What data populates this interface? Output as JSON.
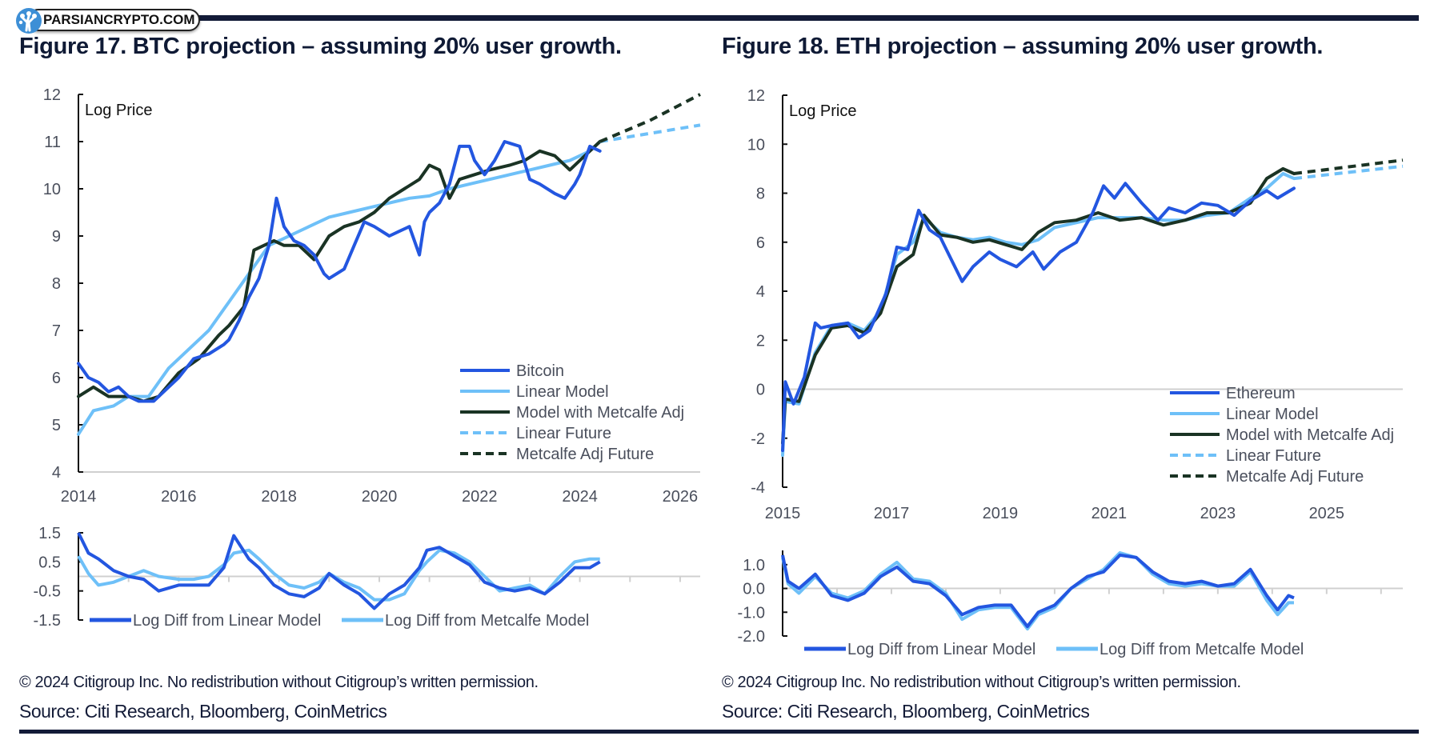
{
  "watermark": {
    "text": "PARSIANCRYPTO.COM",
    "icon": "tree-logo-icon"
  },
  "colors": {
    "asset": "#2356e0",
    "linear": "#6ec0f8",
    "metcalfe": "#1a3324",
    "rule": "#131b38",
    "zero": "#d0d0d0"
  },
  "chart_data": [
    {
      "type": "line",
      "title": "Figure 17. BTC projection – assuming 20% user growth.",
      "ylabel": "Log Price",
      "xlim": [
        2014,
        2026.4
      ],
      "ylim": [
        4,
        12
      ],
      "x_ticks": [
        "2014",
        "2016",
        "2018",
        "2020",
        "2022",
        "2024",
        "2026"
      ],
      "y_ticks": [
        "12",
        "11",
        "10",
        "9",
        "8",
        "7",
        "6",
        "5",
        "4"
      ],
      "legend_position": "bottom-right",
      "legend": [
        "Bitcoin",
        "Linear Model",
        "Model with Metcalfe Adj",
        "Linear Future",
        "Metcalfe Adj Future"
      ],
      "series": [
        {
          "name": "Bitcoin",
          "style": "solid",
          "color_key": "asset",
          "x": [
            2014.0,
            2014.2,
            2014.4,
            2014.6,
            2014.8,
            2015.0,
            2015.2,
            2015.5,
            2015.8,
            2016.0,
            2016.3,
            2016.6,
            2016.9,
            2017.0,
            2017.2,
            2017.4,
            2017.6,
            2017.8,
            2017.95,
            2018.1,
            2018.3,
            2018.5,
            2018.7,
            2018.9,
            2019.0,
            2019.3,
            2019.5,
            2019.7,
            2019.9,
            2020.2,
            2020.4,
            2020.6,
            2020.8,
            2020.9,
            2021.0,
            2021.2,
            2021.4,
            2021.6,
            2021.8,
            2021.9,
            2022.1,
            2022.3,
            2022.5,
            2022.8,
            2023.0,
            2023.2,
            2023.5,
            2023.7,
            2023.9,
            2024.0,
            2024.2,
            2024.4
          ],
          "y": [
            6.3,
            6.0,
            5.9,
            5.7,
            5.8,
            5.6,
            5.5,
            5.5,
            5.8,
            6.0,
            6.4,
            6.5,
            6.7,
            6.8,
            7.2,
            7.7,
            8.1,
            8.8,
            9.8,
            9.2,
            8.9,
            8.8,
            8.6,
            8.2,
            8.1,
            8.3,
            8.8,
            9.3,
            9.2,
            9.0,
            9.1,
            9.2,
            8.6,
            9.3,
            9.5,
            9.7,
            10.1,
            10.9,
            10.9,
            10.6,
            10.3,
            10.6,
            11.0,
            10.9,
            10.2,
            10.1,
            9.9,
            9.8,
            10.1,
            10.3,
            10.9,
            10.8
          ]
        },
        {
          "name": "Linear Model",
          "style": "solid",
          "color_key": "linear",
          "x": [
            2014.0,
            2014.3,
            2014.7,
            2015.0,
            2015.4,
            2015.8,
            2016.2,
            2016.6,
            2017.0,
            2017.4,
            2017.8,
            2018.2,
            2018.6,
            2019.0,
            2019.4,
            2019.8,
            2020.2,
            2020.6,
            2021.0,
            2021.4,
            2021.8,
            2022.2,
            2022.6,
            2023.0,
            2023.4,
            2023.8,
            2024.2,
            2024.4
          ],
          "y": [
            4.8,
            5.3,
            5.4,
            5.6,
            5.6,
            6.2,
            6.6,
            7.0,
            7.6,
            8.2,
            8.8,
            9.0,
            9.2,
            9.4,
            9.5,
            9.6,
            9.7,
            9.8,
            9.85,
            10.0,
            10.1,
            10.2,
            10.3,
            10.4,
            10.5,
            10.6,
            10.8,
            11.0
          ]
        },
        {
          "name": "Model with Metcalfe Adj",
          "style": "solid",
          "color_key": "metcalfe",
          "x": [
            2014.0,
            2014.3,
            2014.6,
            2015.0,
            2015.3,
            2015.6,
            2016.0,
            2016.4,
            2016.8,
            2017.0,
            2017.3,
            2017.5,
            2017.7,
            2017.9,
            2018.1,
            2018.4,
            2018.7,
            2019.0,
            2019.3,
            2019.6,
            2019.9,
            2020.2,
            2020.5,
            2020.8,
            2021.0,
            2021.2,
            2021.4,
            2021.6,
            2021.9,
            2022.2,
            2022.6,
            2022.9,
            2023.2,
            2023.5,
            2023.8,
            2024.0,
            2024.2,
            2024.4
          ],
          "y": [
            5.6,
            5.8,
            5.6,
            5.6,
            5.5,
            5.6,
            6.1,
            6.4,
            6.9,
            7.1,
            7.5,
            8.7,
            8.8,
            8.9,
            8.8,
            8.8,
            8.5,
            9.0,
            9.2,
            9.3,
            9.5,
            9.8,
            10.0,
            10.2,
            10.5,
            10.4,
            9.8,
            10.2,
            10.3,
            10.4,
            10.5,
            10.6,
            10.8,
            10.7,
            10.4,
            10.6,
            10.8,
            11.0
          ]
        },
        {
          "name": "Linear Future",
          "style": "dashed",
          "color_key": "linear",
          "x": [
            2024.4,
            2026.4
          ],
          "y": [
            11.0,
            11.35
          ]
        },
        {
          "name": "Metcalfe Adj Future",
          "style": "dashed",
          "color_key": "metcalfe",
          "x": [
            2024.4,
            2025.4,
            2026.4
          ],
          "y": [
            11.0,
            11.45,
            12.0
          ]
        }
      ],
      "diff_panel": {
        "ylim": [
          -1.5,
          1.5
        ],
        "y_ticks": [
          "1.5",
          "0.5",
          "-0.5",
          "-1.5"
        ],
        "legend": [
          "Log Diff from Linear Model",
          "Log Diff from Metcalfe Model"
        ],
        "series": [
          {
            "name": "Log Diff from Linear Model",
            "color_key": "asset",
            "x": [
              2014.0,
              2014.2,
              2014.4,
              2014.7,
              2015.0,
              2015.3,
              2015.6,
              2016.0,
              2016.3,
              2016.6,
              2016.9,
              2017.1,
              2017.4,
              2017.6,
              2017.9,
              2018.2,
              2018.5,
              2018.8,
              2019.0,
              2019.3,
              2019.6,
              2019.9,
              2020.2,
              2020.5,
              2020.8,
              2020.95,
              2021.2,
              2021.5,
              2021.8,
              2022.1,
              2022.4,
              2022.7,
              2023.0,
              2023.3,
              2023.6,
              2023.9,
              2024.2,
              2024.4
            ],
            "y": [
              1.5,
              0.8,
              0.6,
              0.2,
              0.0,
              -0.1,
              -0.5,
              -0.3,
              -0.3,
              -0.3,
              0.3,
              1.4,
              0.6,
              0.3,
              -0.3,
              -0.6,
              -0.7,
              -0.4,
              0.1,
              -0.3,
              -0.6,
              -1.1,
              -0.6,
              -0.3,
              0.3,
              0.9,
              1.0,
              0.7,
              0.4,
              -0.2,
              -0.4,
              -0.5,
              -0.4,
              -0.6,
              -0.2,
              0.3,
              0.3,
              0.5
            ]
          },
          {
            "name": "Log Diff from Metcalfe Model",
            "color_key": "linear",
            "x": [
              2014.0,
              2014.2,
              2014.4,
              2014.7,
              2015.0,
              2015.3,
              2015.6,
              2016.0,
              2016.3,
              2016.6,
              2016.9,
              2017.1,
              2017.4,
              2017.6,
              2017.9,
              2018.2,
              2018.5,
              2018.8,
              2019.0,
              2019.3,
              2019.6,
              2019.9,
              2020.2,
              2020.5,
              2020.8,
              2020.95,
              2021.2,
              2021.5,
              2021.8,
              2022.1,
              2022.4,
              2022.7,
              2023.0,
              2023.3,
              2023.6,
              2023.9,
              2024.2,
              2024.4
            ],
            "y": [
              0.7,
              0.1,
              -0.3,
              -0.2,
              0.0,
              0.2,
              0.0,
              -0.1,
              -0.1,
              0.0,
              0.4,
              0.8,
              0.9,
              0.6,
              0.1,
              -0.3,
              -0.4,
              -0.2,
              0.1,
              -0.2,
              -0.4,
              -0.8,
              -0.8,
              -0.6,
              0.2,
              0.5,
              0.9,
              0.8,
              0.5,
              0.0,
              -0.5,
              -0.4,
              -0.3,
              -0.6,
              0.0,
              0.5,
              0.6,
              0.6
            ]
          }
        ]
      }
    },
    {
      "type": "line",
      "title": "Figure 18. ETH projection – assuming 20% user growth.",
      "ylabel": "Log Price",
      "xlim": [
        2015,
        2026.4
      ],
      "ylim": [
        -4,
        12
      ],
      "x_ticks": [
        "2015",
        "2017",
        "2019",
        "2021",
        "2023",
        "2025"
      ],
      "y_ticks": [
        "12",
        "10",
        "8",
        "6",
        "4",
        "2",
        "0",
        "-2",
        "-4"
      ],
      "legend_position": "bottom-right",
      "legend": [
        "Ethereum",
        "Linear Model",
        "Model with Metcalfe Adj",
        "Linear Future",
        "Metcalfe Adj Future"
      ],
      "series": [
        {
          "name": "Ethereum",
          "style": "solid",
          "color_key": "asset",
          "x": [
            2015.0,
            2015.05,
            2015.2,
            2015.4,
            2015.6,
            2015.7,
            2015.9,
            2016.2,
            2016.4,
            2016.6,
            2016.9,
            2017.1,
            2017.3,
            2017.5,
            2017.7,
            2017.9,
            2018.1,
            2018.3,
            2018.5,
            2018.8,
            2019.0,
            2019.3,
            2019.6,
            2019.8,
            2020.1,
            2020.4,
            2020.7,
            2020.9,
            2021.1,
            2021.3,
            2021.6,
            2021.9,
            2022.1,
            2022.4,
            2022.7,
            2023.0,
            2023.3,
            2023.6,
            2023.9,
            2024.1,
            2024.4
          ],
          "y": [
            -2.5,
            0.3,
            -0.6,
            0.5,
            2.7,
            2.5,
            2.6,
            2.7,
            2.1,
            2.4,
            3.9,
            5.8,
            5.7,
            7.3,
            6.5,
            6.2,
            5.3,
            4.4,
            5.0,
            5.6,
            5.3,
            5.0,
            5.6,
            4.9,
            5.6,
            6.0,
            7.2,
            8.3,
            7.8,
            8.4,
            7.6,
            6.9,
            7.4,
            7.2,
            7.6,
            7.5,
            7.1,
            7.7,
            8.1,
            7.8,
            8.2
          ]
        },
        {
          "name": "Linear Model",
          "style": "solid",
          "color_key": "linear",
          "x": [
            2015.0,
            2015.05,
            2015.3,
            2015.6,
            2015.9,
            2016.2,
            2016.5,
            2016.8,
            2017.1,
            2017.4,
            2017.6,
            2017.9,
            2018.2,
            2018.5,
            2018.8,
            2019.1,
            2019.4,
            2019.7,
            2020.0,
            2020.4,
            2020.8,
            2021.2,
            2021.6,
            2022.0,
            2022.4,
            2022.8,
            2023.2,
            2023.6,
            2023.9,
            2024.2,
            2024.4
          ],
          "y": [
            -2.7,
            -0.5,
            -0.6,
            1.5,
            2.6,
            2.7,
            2.4,
            3.2,
            5.5,
            6.0,
            7.0,
            6.4,
            6.2,
            6.1,
            6.2,
            6.0,
            5.9,
            6.1,
            6.6,
            6.8,
            7.0,
            7.0,
            7.0,
            6.9,
            6.9,
            7.1,
            7.2,
            7.8,
            8.2,
            8.8,
            8.6
          ]
        },
        {
          "name": "Model with Metcalfe Adj",
          "style": "solid",
          "color_key": "metcalfe",
          "x": [
            2015.0,
            2015.05,
            2015.3,
            2015.6,
            2015.9,
            2016.2,
            2016.5,
            2016.8,
            2017.1,
            2017.4,
            2017.6,
            2017.9,
            2018.2,
            2018.5,
            2018.8,
            2019.1,
            2019.4,
            2019.7,
            2020.0,
            2020.4,
            2020.8,
            2021.2,
            2021.6,
            2022.0,
            2022.4,
            2022.8,
            2023.2,
            2023.6,
            2023.9,
            2024.2,
            2024.4
          ],
          "y": [
            -2.2,
            -0.4,
            -0.5,
            1.4,
            2.5,
            2.6,
            2.3,
            3.1,
            5.0,
            5.5,
            7.1,
            6.3,
            6.2,
            6.0,
            6.1,
            5.9,
            5.7,
            6.4,
            6.8,
            6.9,
            7.2,
            6.9,
            7.0,
            6.7,
            6.9,
            7.2,
            7.2,
            7.6,
            8.6,
            9.0,
            8.8
          ]
        },
        {
          "name": "Linear Future",
          "style": "dashed",
          "color_key": "linear",
          "x": [
            2024.4,
            2026.4
          ],
          "y": [
            8.6,
            9.1
          ]
        },
        {
          "name": "Metcalfe Adj Future",
          "style": "dashed",
          "color_key": "metcalfe",
          "x": [
            2024.4,
            2026.4
          ],
          "y": [
            8.8,
            9.35
          ]
        }
      ],
      "diff_panel": {
        "ylim": [
          -2.0,
          1.6
        ],
        "y_ticks": [
          "1.0",
          "0.0",
          "-1.0",
          "-2.0"
        ],
        "legend": [
          "Log Diff from Linear Model",
          "Log Diff from Metcalfe Model"
        ],
        "series": [
          {
            "name": "Log Diff from Linear Model",
            "color_key": "asset",
            "x": [
              2015.0,
              2015.1,
              2015.3,
              2015.6,
              2015.9,
              2016.2,
              2016.5,
              2016.8,
              2017.1,
              2017.4,
              2017.7,
              2018.0,
              2018.3,
              2018.6,
              2018.9,
              2019.2,
              2019.5,
              2019.7,
              2020.0,
              2020.3,
              2020.6,
              2020.9,
              2021.2,
              2021.5,
              2021.8,
              2022.1,
              2022.4,
              2022.7,
              2023.0,
              2023.3,
              2023.6,
              2023.9,
              2024.1,
              2024.3,
              2024.4
            ],
            "y": [
              1.4,
              0.3,
              0.0,
              0.6,
              -0.3,
              -0.5,
              -0.2,
              0.5,
              0.9,
              0.3,
              0.2,
              -0.3,
              -1.1,
              -0.8,
              -0.7,
              -0.7,
              -1.6,
              -1.0,
              -0.7,
              0.0,
              0.5,
              0.7,
              1.4,
              1.3,
              0.7,
              0.3,
              0.2,
              0.3,
              0.1,
              0.2,
              0.8,
              -0.3,
              -0.9,
              -0.3,
              -0.4
            ]
          },
          {
            "name": "Log Diff from Metcalfe Model",
            "color_key": "linear",
            "x": [
              2015.0,
              2015.1,
              2015.3,
              2015.6,
              2015.9,
              2016.2,
              2016.5,
              2016.8,
              2017.1,
              2017.4,
              2017.7,
              2018.0,
              2018.3,
              2018.6,
              2018.9,
              2019.2,
              2019.5,
              2019.7,
              2020.0,
              2020.3,
              2020.6,
              2020.9,
              2021.2,
              2021.5,
              2021.8,
              2022.1,
              2022.4,
              2022.7,
              2023.0,
              2023.3,
              2023.6,
              2023.9,
              2024.1,
              2024.3,
              2024.4
            ],
            "y": [
              1.3,
              0.2,
              -0.2,
              0.5,
              -0.2,
              -0.4,
              -0.1,
              0.6,
              1.1,
              0.4,
              0.3,
              -0.2,
              -1.3,
              -0.9,
              -0.8,
              -0.8,
              -1.7,
              -1.1,
              -0.8,
              0.0,
              0.4,
              0.8,
              1.5,
              1.3,
              0.6,
              0.2,
              0.1,
              0.2,
              0.1,
              0.1,
              0.7,
              -0.5,
              -1.1,
              -0.6,
              -0.6
            ]
          }
        ]
      }
    }
  ],
  "footer": {
    "copyright": "© 2024 Citigroup Inc. No redistribution without Citigroup’s written permission.",
    "source": "Source: Citi Research, Bloomberg, CoinMetrics"
  }
}
